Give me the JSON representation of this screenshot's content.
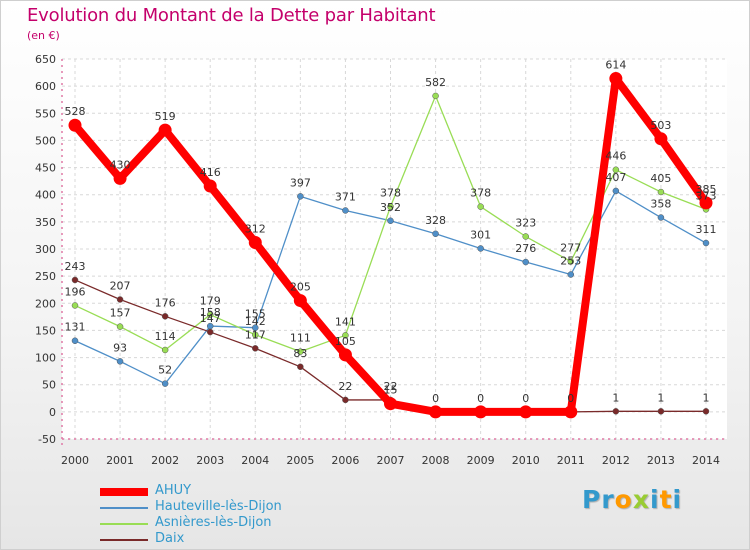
{
  "title": "Evolution du Montant de la Dette par Habitant",
  "unit": "(en €)",
  "logo": {
    "text": "Proxiti",
    "letters": [
      "P",
      "r",
      "o",
      "x",
      "i",
      "t",
      "i"
    ],
    "colors": [
      "#3399cc",
      "#3399cc",
      "#ff9900",
      "#99cc33",
      "#3399cc",
      "#ff9900",
      "#3399cc"
    ]
  },
  "chart_data": {
    "type": "line",
    "title": "Evolution du Montant de la Dette par Habitant",
    "ylabel": "(en €)",
    "xlabel": "",
    "x": [
      "2000",
      "2001",
      "2002",
      "2003",
      "2004",
      "2005",
      "2006",
      "2007",
      "2008",
      "2009",
      "2010",
      "2011",
      "2012",
      "2013",
      "2014"
    ],
    "ylim": [
      -50,
      650
    ],
    "yticks": [
      -50,
      0,
      50,
      100,
      150,
      200,
      250,
      300,
      350,
      400,
      450,
      500,
      550,
      600,
      650
    ],
    "grid": true,
    "legend_position": "bottom-left",
    "series": [
      {
        "name": "AHUY",
        "color": "#ff0000",
        "width": 8,
        "values": [
          528,
          430,
          519,
          416,
          312,
          205,
          105,
          15,
          0,
          0,
          0,
          0,
          614,
          503,
          385
        ],
        "labels": [
          "528",
          "430",
          "519",
          "416",
          "312",
          "205",
          "105",
          "15",
          "0",
          "0",
          "0",
          "0",
          "614",
          "503",
          "385"
        ]
      },
      {
        "name": "Hauteville-lès-Dijon",
        "color": "#4f8fc8",
        "width": 1.3,
        "values": [
          131,
          93,
          52,
          158,
          155,
          397,
          371,
          352,
          328,
          301,
          276,
          253,
          407,
          358,
          311
        ],
        "labels": [
          "131",
          "93",
          "52",
          "158",
          "155",
          "397",
          "371",
          "352",
          "328",
          "301",
          "276",
          "253",
          "407",
          "358",
          "311"
        ]
      },
      {
        "name": "Asnières-lès-Dijon",
        "color": "#99dd55",
        "width": 1.3,
        "values": [
          196,
          157,
          114,
          179,
          142,
          111,
          141,
          378,
          582,
          378,
          323,
          277,
          446,
          405,
          373
        ],
        "labels": [
          "196",
          "157",
          "114",
          "179",
          "142",
          "111",
          "141",
          "378",
          "582",
          "378",
          "323",
          "277",
          "446",
          "405",
          "373"
        ]
      },
      {
        "name": "Daix",
        "color": "#7a2a2a",
        "width": 1.3,
        "values": [
          243,
          207,
          176,
          147,
          117,
          83,
          22,
          22,
          0,
          0,
          0,
          0,
          1,
          1,
          1
        ],
        "labels": [
          "243",
          "207",
          "176",
          "147",
          "117",
          "83",
          "22",
          "22",
          "",
          "",
          "",
          "",
          "1",
          "1",
          "1"
        ]
      }
    ]
  }
}
